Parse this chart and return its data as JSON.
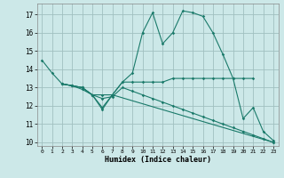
{
  "xlabel": "Humidex (Indice chaleur)",
  "xlim": [
    -0.5,
    23.5
  ],
  "ylim": [
    9.8,
    17.6
  ],
  "yticks": [
    10,
    11,
    12,
    13,
    14,
    15,
    16,
    17
  ],
  "xticks": [
    0,
    1,
    2,
    3,
    4,
    5,
    6,
    7,
    8,
    9,
    10,
    11,
    12,
    13,
    14,
    15,
    16,
    17,
    18,
    19,
    20,
    21,
    22,
    23
  ],
  "bg_color": "#cce8e8",
  "grid_color": "#a0c0c0",
  "line_color": "#1a7a6a",
  "lines": [
    {
      "x": [
        0,
        1,
        2,
        3,
        4,
        5,
        6,
        7,
        8,
        9,
        10,
        11,
        12,
        13,
        14,
        15,
        16,
        17,
        18,
        19,
        20,
        21,
        22,
        23
      ],
      "y": [
        14.5,
        13.8,
        13.2,
        13.1,
        13.0,
        12.6,
        11.8,
        12.6,
        13.3,
        13.8,
        16.0,
        17.1,
        15.4,
        16.0,
        17.2,
        17.1,
        16.9,
        16.0,
        14.8,
        13.5,
        11.3,
        11.9,
        10.6,
        10.1
      ]
    },
    {
      "x": [
        2,
        3,
        4,
        5,
        6,
        7,
        8,
        9,
        10,
        11,
        12,
        13,
        14,
        15,
        16,
        17,
        18,
        19,
        20,
        21
      ],
      "y": [
        13.2,
        13.1,
        13.0,
        12.6,
        12.6,
        12.6,
        13.3,
        13.3,
        13.3,
        13.3,
        13.3,
        13.5,
        13.5,
        13.5,
        13.5,
        13.5,
        13.5,
        13.5,
        13.5,
        13.5
      ]
    },
    {
      "x": [
        2,
        3,
        4,
        5,
        6,
        7,
        8,
        9,
        10,
        11,
        12,
        13,
        14,
        15,
        16,
        17,
        18,
        19,
        20,
        21,
        22,
        23
      ],
      "y": [
        13.2,
        13.1,
        13.0,
        12.6,
        12.4,
        12.5,
        13.0,
        12.8,
        12.6,
        12.4,
        12.2,
        12.0,
        11.8,
        11.6,
        11.4,
        11.2,
        11.0,
        10.8,
        10.6,
        10.4,
        10.2,
        10.0
      ]
    },
    {
      "x": [
        2,
        3,
        4,
        5,
        6,
        7,
        23
      ],
      "y": [
        13.2,
        13.1,
        12.9,
        12.6,
        11.9,
        12.6,
        10.0
      ]
    }
  ]
}
